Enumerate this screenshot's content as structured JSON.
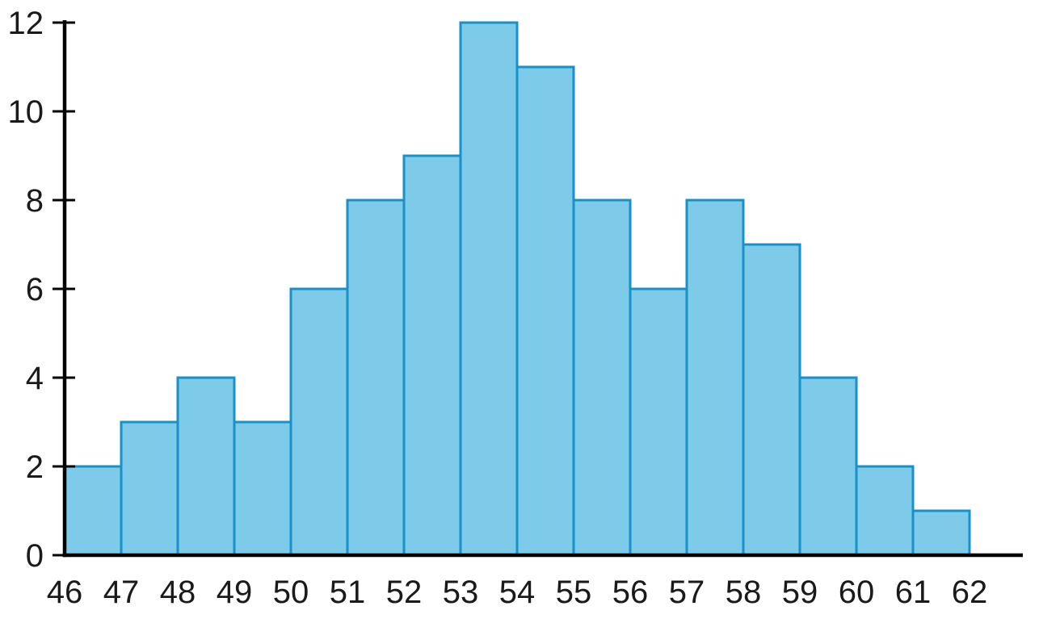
{
  "chart_data": {
    "type": "bar",
    "subtype": "histogram",
    "title": "",
    "xlabel": "",
    "ylabel": "",
    "bin_edges": [
      46,
      47,
      48,
      49,
      50,
      51,
      52,
      53,
      54,
      55,
      56,
      57,
      58,
      59,
      60,
      61,
      62
    ],
    "values": [
      2,
      3,
      4,
      3,
      6,
      8,
      9,
      12,
      11,
      8,
      6,
      8,
      7,
      4,
      2,
      1
    ],
    "x_tick_labels": [
      "46",
      "47",
      "48",
      "49",
      "50",
      "51",
      "52",
      "53",
      "54",
      "55",
      "56",
      "57",
      "58",
      "59",
      "60",
      "61",
      "62"
    ],
    "y_tick_labels": [
      "0",
      "2",
      "4",
      "6",
      "8",
      "10",
      "12"
    ],
    "y_ticks": [
      0,
      2,
      4,
      6,
      8,
      10,
      12
    ],
    "xlim": [
      46,
      62
    ],
    "ylim": [
      0,
      12
    ],
    "grid": "off",
    "legend": "none",
    "colors": {
      "bar_fill": "#7DCBE8",
      "bar_stroke": "#1792C8",
      "axis": "#000000",
      "text": "#1a1a1a"
    }
  }
}
